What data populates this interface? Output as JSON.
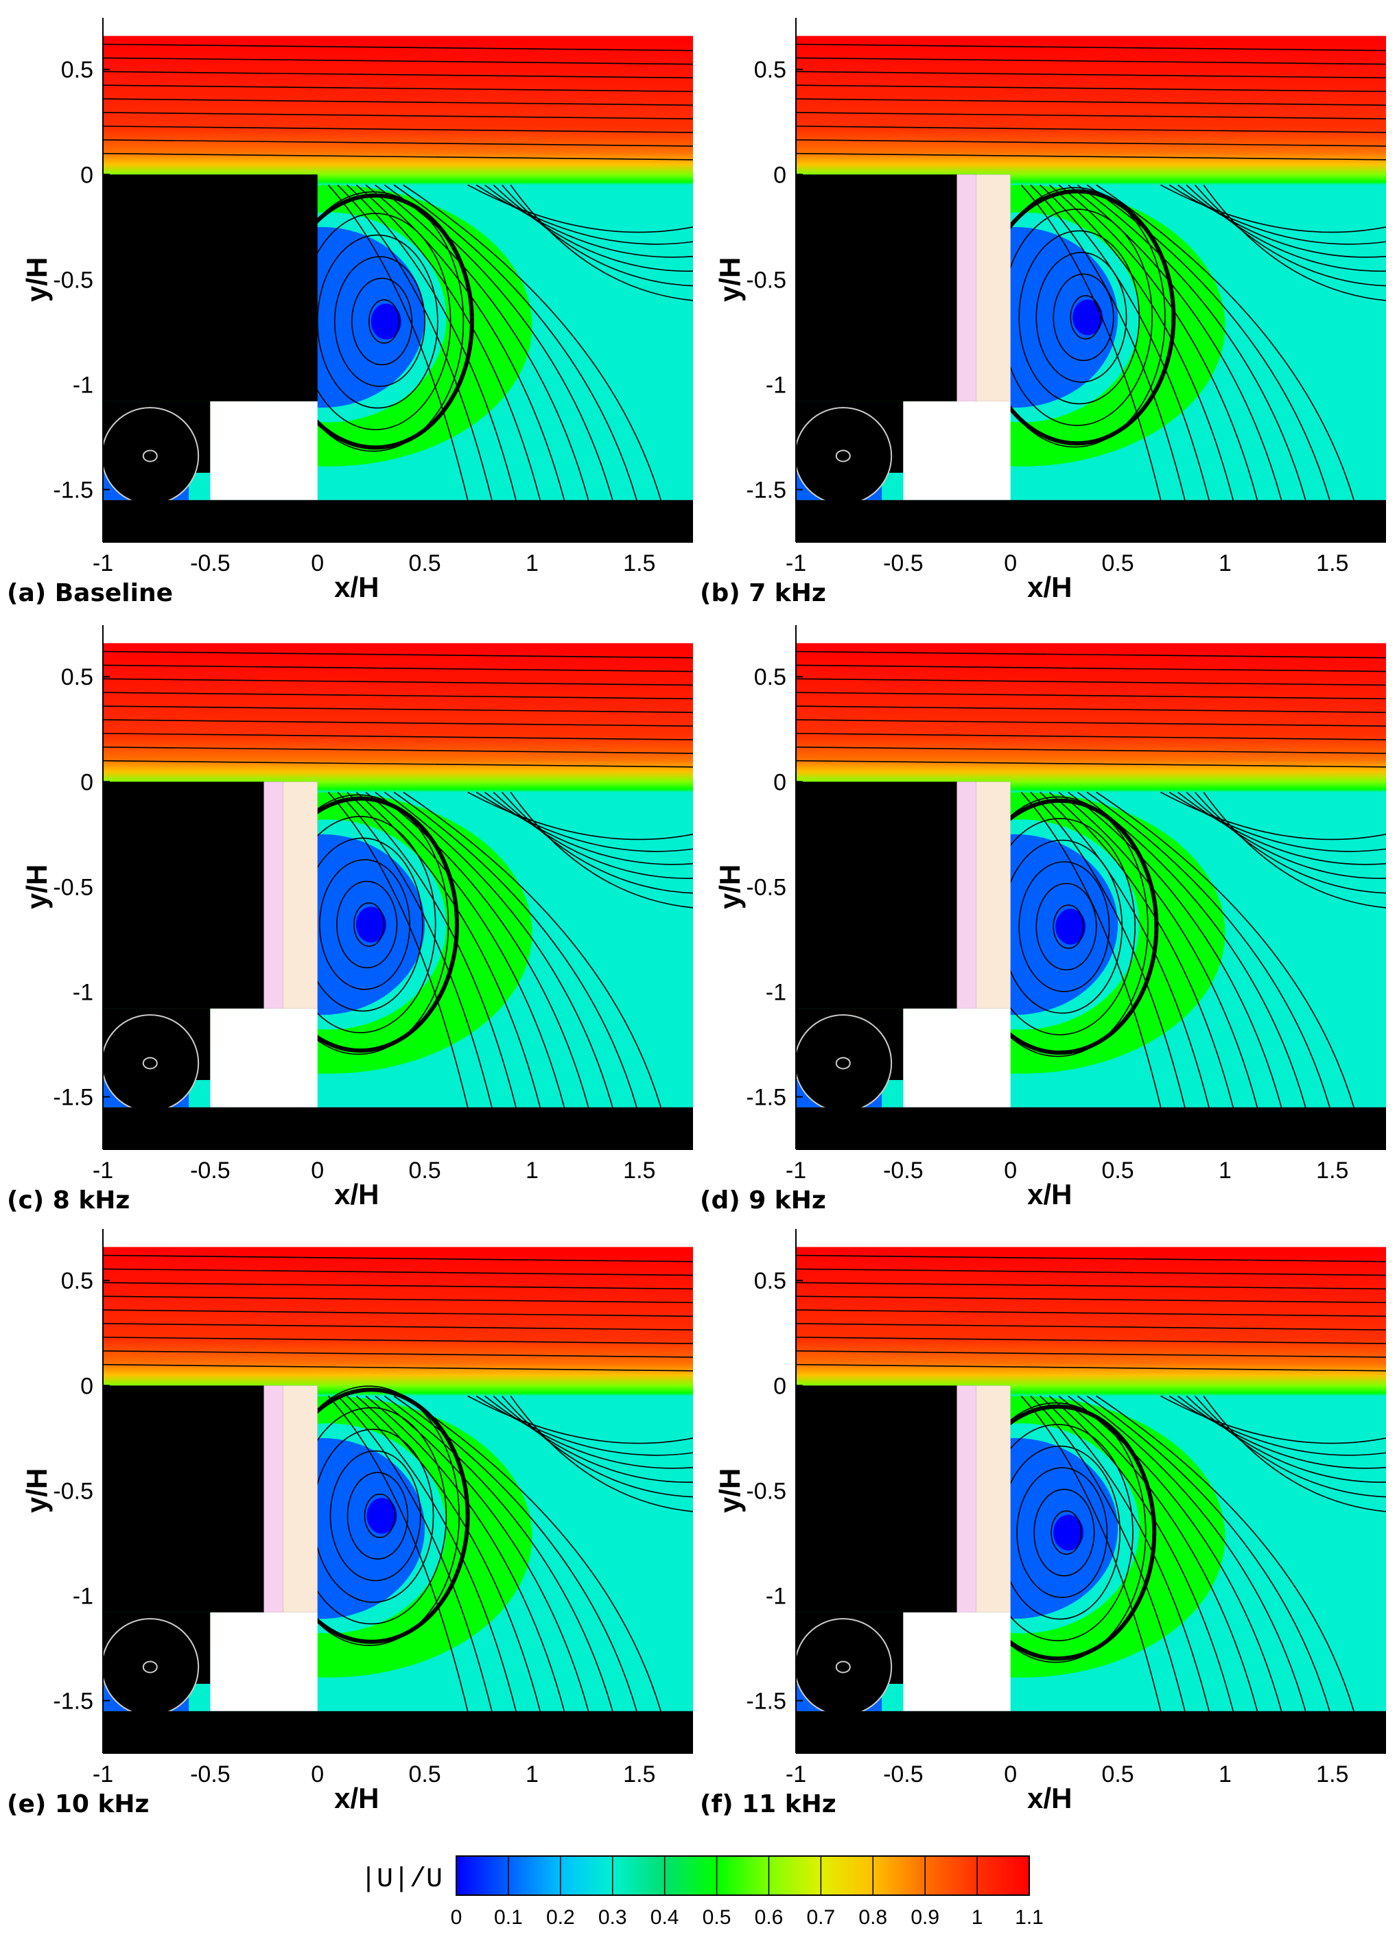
{
  "chart_data": {
    "type": "heatmap",
    "quantity": "|U|/U",
    "x_axis": {
      "label": "x/H",
      "range": [
        -1,
        1.75
      ],
      "ticks": [
        "-1",
        "-0.5",
        "0",
        "0.5",
        "1",
        "1.5"
      ],
      "tick_values": [
        -1,
        -0.5,
        0,
        0.5,
        1,
        1.5
      ]
    },
    "y_axis": {
      "label": "y/H",
      "range": [
        -1.75,
        0.7
      ],
      "ticks": [
        "0.5",
        "0",
        "-0.5",
        "-1",
        "-1.5"
      ],
      "tick_values": [
        0.5,
        0,
        -0.5,
        -1,
        -1.5
      ]
    },
    "panels": [
      {
        "caption": "(a) Baseline",
        "actuator": false,
        "vortex_center": [
          0.32,
          -0.7
        ]
      },
      {
        "caption": "(b) 7 kHz",
        "actuator": true,
        "vortex_center": [
          0.36,
          -0.68
        ]
      },
      {
        "caption": "(c) 8 kHz",
        "actuator": true,
        "vortex_center": [
          0.25,
          -0.68
        ]
      },
      {
        "caption": "(d) 9 kHz",
        "actuator": true,
        "vortex_center": [
          0.28,
          -0.69
        ]
      },
      {
        "caption": "(e) 10 kHz",
        "actuator": true,
        "vortex_center": [
          0.3,
          -0.62
        ]
      },
      {
        "caption": "(f) 11 kHz",
        "actuator": true,
        "vortex_center": [
          0.27,
          -0.7
        ]
      }
    ],
    "colorbar": {
      "title": "|U|/U",
      "min": 0,
      "max": 1.1,
      "tick_labels": [
        "0",
        "0.1",
        "0.2",
        "0.3",
        "0.4",
        "0.5",
        "0.6",
        "0.7",
        "0.8",
        "0.9",
        "1",
        "1.1"
      ],
      "colors": [
        "#0000ff",
        "#0060ff",
        "#00c0ff",
        "#00f0d0",
        "#00e070",
        "#00ff00",
        "#80ff00",
        "#e0f000",
        "#ffc000",
        "#ff7000",
        "#ff3000",
        "#ff0000"
      ]
    }
  }
}
